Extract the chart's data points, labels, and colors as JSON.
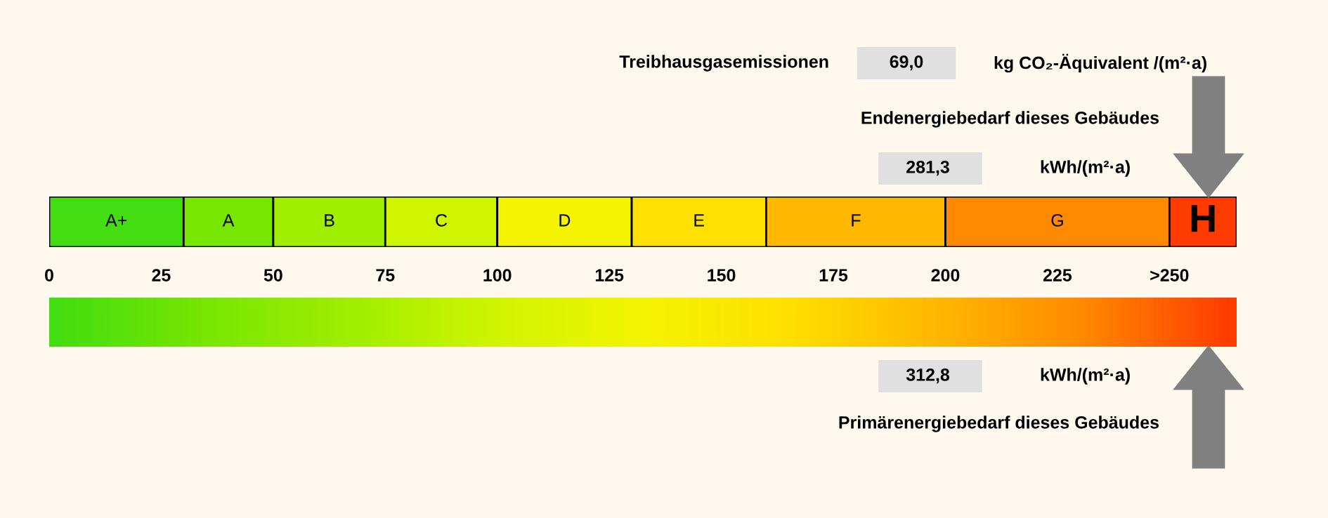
{
  "chart_data": {
    "type": "bar",
    "orientation": "horizontal",
    "stacked": true,
    "categories": [
      null
    ],
    "series": [
      {
        "name": "A+",
        "color": "#44dd11",
        "values": [
          30
        ]
      },
      {
        "name": "A",
        "color": "#77e600",
        "values": [
          20
        ]
      },
      {
        "name": "B",
        "color": "#a0ee00",
        "values": [
          25
        ]
      },
      {
        "name": "C",
        "color": "#d0f500",
        "values": [
          25
        ]
      },
      {
        "name": "D",
        "color": "#f4f400",
        "values": [
          30
        ]
      },
      {
        "name": "E",
        "color": "#ffe000",
        "values": [
          30
        ]
      },
      {
        "name": "F",
        "color": "#ffb800",
        "values": [
          40
        ]
      },
      {
        "name": "G",
        "color": "#ff8a00",
        "values": [
          50
        ]
      },
      {
        "name": "H",
        "color": "#ff3c00",
        "values": [
          15
        ]
      }
    ],
    "xlim": [
      0,
      265
    ],
    "xticks": [
      0,
      25,
      50,
      75,
      100,
      125,
      150,
      175,
      200,
      225,
      {
        "value": 250,
        "label": ">250"
      }
    ],
    "legend": false,
    "grid": false,
    "annotations": [
      "Treibhausgasemissionen",
      "69,0",
      "kg CO₂-Äquivalent /(m²·a)",
      "Endenergiebedarf dieses Gebäudes",
      "281,3",
      "kWh/(m²·a)",
      "312,8",
      "kWh/(m²·a)",
      "Primärenergiebedarf dieses Gebäudes"
    ]
  }
}
